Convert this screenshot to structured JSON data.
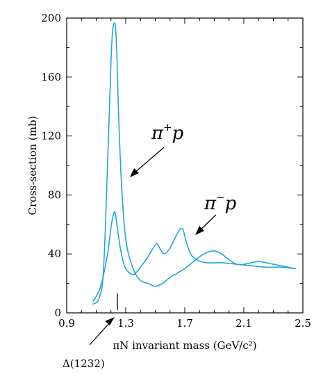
{
  "chart_data": {
    "type": "line",
    "title": "",
    "xlabel": "πN invariant mass (GeV/c²)",
    "ylabel": "Cross-section (mb)",
    "xlim": [
      0.9,
      2.5
    ],
    "ylim": [
      0,
      200
    ],
    "x_ticks": [
      0.9,
      1.3,
      1.7,
      2.1,
      2.5
    ],
    "x_tick_labels": [
      "0.9",
      "1.3",
      "1.7",
      "2.1",
      "2.5"
    ],
    "y_ticks": [
      0,
      40,
      80,
      120,
      160,
      200
    ],
    "y_tick_labels": [
      "0",
      "40",
      "80",
      "120",
      "160",
      "200"
    ],
    "grid": false,
    "series": [
      {
        "name": "π⁺p",
        "color": "#1fa5dc",
        "x": [
          1.08,
          1.12,
          1.15,
          1.18,
          1.2,
          1.21,
          1.22,
          1.23,
          1.24,
          1.25,
          1.27,
          1.3,
          1.35,
          1.4,
          1.45,
          1.5,
          1.55,
          1.6,
          1.65,
          1.7,
          1.75,
          1.8,
          1.85,
          1.9,
          1.95,
          2.0,
          2.05,
          2.1,
          2.15,
          2.2,
          2.25,
          2.3,
          2.35,
          2.4,
          2.45
        ],
        "y": [
          6,
          10,
          30,
          110,
          170,
          190,
          196,
          194,
          175,
          140,
          90,
          50,
          30,
          22,
          20,
          18,
          20,
          24,
          27,
          30,
          34,
          38,
          41,
          42,
          40,
          36,
          33,
          33,
          34,
          35,
          34,
          33,
          32,
          31,
          30
        ]
      },
      {
        "name": "π⁻p",
        "color": "#1fa5dc",
        "x": [
          1.08,
          1.12,
          1.15,
          1.18,
          1.2,
          1.22,
          1.23,
          1.24,
          1.26,
          1.28,
          1.3,
          1.35,
          1.4,
          1.45,
          1.48,
          1.51,
          1.53,
          1.56,
          1.6,
          1.64,
          1.67,
          1.69,
          1.71,
          1.74,
          1.78,
          1.85,
          1.95,
          2.05,
          2.15,
          2.25,
          2.35,
          2.45
        ],
        "y": [
          8,
          15,
          26,
          42,
          58,
          68,
          67,
          60,
          46,
          36,
          30,
          26,
          31,
          38,
          43,
          47,
          44,
          40,
          44,
          52,
          57,
          56,
          48,
          40,
          36,
          34,
          34,
          33,
          32,
          31,
          31,
          30
        ]
      }
    ],
    "annotations": [
      {
        "text": "π",
        "sup": "+",
        "rest": "p",
        "series": "π⁺p"
      },
      {
        "text": "π",
        "sup": "−",
        "rest": "p",
        "series": "π⁻p"
      },
      {
        "text": "Δ(1232)",
        "x": 1.232
      }
    ]
  }
}
